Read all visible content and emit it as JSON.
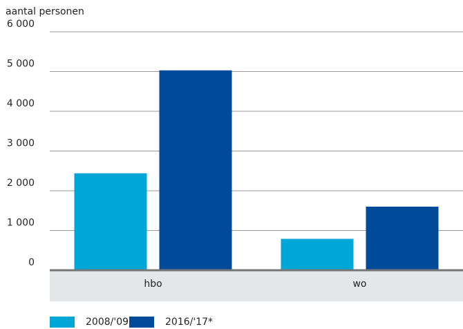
{
  "chart_data": {
    "type": "bar",
    "y_axis_label": "aantal personen",
    "categories": [
      "hbo",
      "wo"
    ],
    "series": [
      {
        "name": "2008/'09",
        "color": "#00a6d6",
        "values": [
          2440,
          790
        ]
      },
      {
        "name": "2016/'17*",
        "color": "#004a99",
        "values": [
          5030,
          1600
        ]
      }
    ],
    "ylim": [
      0,
      6000
    ],
    "yticks": [
      0,
      {
        "value": 1000,
        "label": "1 000"
      },
      {
        "value": 2000,
        "label": "2 000"
      },
      {
        "value": 3000,
        "label": "3 000"
      },
      {
        "value": 4000,
        "label": "4 000"
      },
      {
        "value": 5000,
        "label": "5 000"
      },
      {
        "value": 6000,
        "label": "6 000"
      }
    ],
    "grid": true
  }
}
